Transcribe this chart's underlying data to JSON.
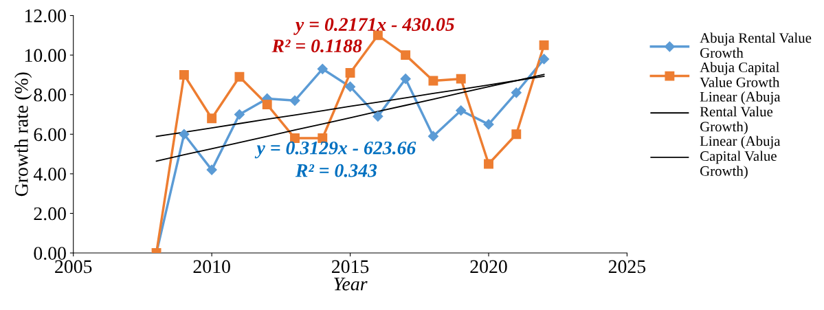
{
  "chart_data": {
    "type": "line",
    "xlabel": "Year",
    "ylabel": "Growth rate (%)",
    "x": [
      2008,
      2009,
      2010,
      2011,
      2012,
      2013,
      2014,
      2015,
      2016,
      2017,
      2018,
      2019,
      2020,
      2021,
      2022
    ],
    "series": [
      {
        "name": "Abuja Rental Value Growth",
        "color": "#5b9bd5",
        "marker": "diamond",
        "values": [
          0,
          6.0,
          4.2,
          7.0,
          7.8,
          7.7,
          9.3,
          8.4,
          6.9,
          8.8,
          5.9,
          7.2,
          6.5,
          8.1,
          9.8
        ]
      },
      {
        "name": "Abuja Capital Value Growth",
        "color": "#ed7d31",
        "marker": "square",
        "values": [
          0,
          9.0,
          6.8,
          8.9,
          7.5,
          5.8,
          5.8,
          9.1,
          11.0,
          10.0,
          8.7,
          8.8,
          4.5,
          6.0,
          10.5
        ]
      },
      {
        "name": "Linear (Abuja Rental Value Growth)",
        "color": "#000000",
        "marker": "none",
        "values": [
          4.64,
          4.96,
          5.27,
          5.58,
          5.89,
          6.21,
          6.52,
          6.83,
          7.15,
          7.46,
          7.77,
          8.09,
          8.4,
          8.71,
          9.02
        ]
      },
      {
        "name": "Linear (Abuja Capital Value Growth)",
        "color": "#000000",
        "marker": "none",
        "values": [
          5.89,
          6.1,
          6.32,
          6.54,
          6.76,
          6.97,
          7.19,
          7.41,
          7.62,
          7.84,
          8.06,
          8.27,
          8.49,
          8.71,
          8.93
        ]
      }
    ],
    "xlim": [
      2005,
      2025
    ],
    "xticks": [
      2005,
      2010,
      2015,
      2020,
      2025
    ],
    "ylim": [
      0,
      12
    ],
    "yticks": [
      {
        "value": 0,
        "label": "0.00"
      },
      {
        "value": 2,
        "label": "2.00"
      },
      {
        "value": 4,
        "label": "4.00"
      },
      {
        "value": 6,
        "label": "6.00"
      },
      {
        "value": 8,
        "label": "8.00"
      },
      {
        "value": 10,
        "label": "10.00"
      },
      {
        "value": 12,
        "label": "12.00"
      }
    ],
    "annotations": [
      "y = 0.2171x - 430.05",
      "R² = 0.1188",
      "y = 0.3129x - 623.66",
      "R² = 0.343"
    ],
    "grid": false,
    "legend": "right"
  }
}
